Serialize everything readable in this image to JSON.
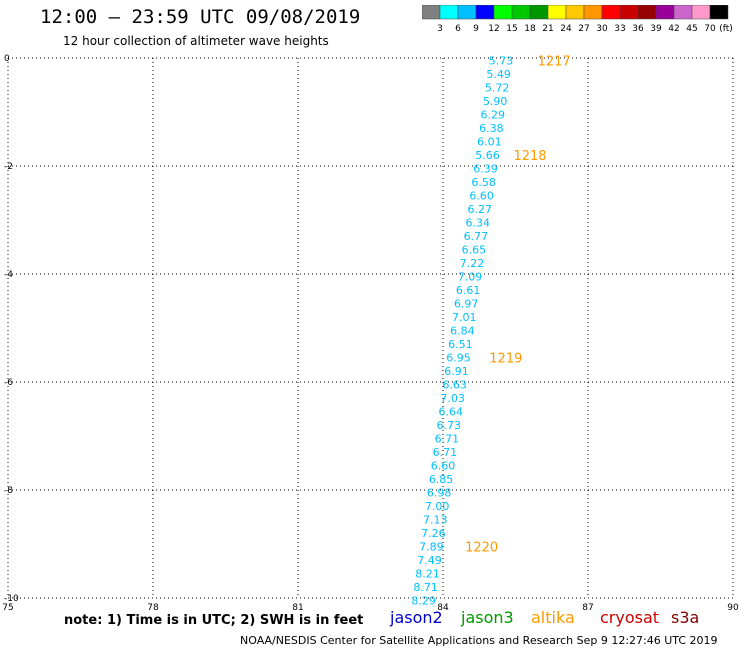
{
  "header": {
    "title": "12:00 — 23:59 UTC 09/08/2019",
    "subtitle": "12 hour collection of altimeter wave heights"
  },
  "colorbar": {
    "colors": [
      "#808080",
      "#00ffff",
      "#00bfff",
      "#0000ff",
      "#00ff00",
      "#00c800",
      "#009600",
      "#ffff00",
      "#ffc800",
      "#ff9600",
      "#ff0000",
      "#c80000",
      "#960000",
      "#990099",
      "#cc66cc",
      "#ff99cc",
      "#000000"
    ],
    "labels": [
      "3",
      "6",
      "9",
      "12",
      "15",
      "18",
      "21",
      "24",
      "27",
      "30",
      "33",
      "36",
      "39",
      "42",
      "45",
      "70"
    ],
    "unit": "(ft)"
  },
  "chart_data": {
    "type": "scatter",
    "xlim": [
      75,
      90
    ],
    "ylim": [
      -10,
      0
    ],
    "x_ticks": [
      "75",
      "78",
      "81",
      "84",
      "87",
      "90"
    ],
    "y_ticks": [
      "0",
      "-2",
      "-4",
      "-6",
      "-8",
      "-10"
    ],
    "grid": true,
    "point_color": "#00bfff",
    "time_label_color": "#ff9900",
    "points": [
      {
        "lon": 85.2,
        "lat": -0.05,
        "swh": "5.73"
      },
      {
        "lon": 85.15,
        "lat": -0.3,
        "swh": "5.49"
      },
      {
        "lon": 85.12,
        "lat": -0.55,
        "swh": "5.72"
      },
      {
        "lon": 85.08,
        "lat": -0.8,
        "swh": "5.90"
      },
      {
        "lon": 85.03,
        "lat": -1.05,
        "swh": "6.29"
      },
      {
        "lon": 85.0,
        "lat": -1.3,
        "swh": "6.38"
      },
      {
        "lon": 84.96,
        "lat": -1.55,
        "swh": "6.01"
      },
      {
        "lon": 84.92,
        "lat": -1.8,
        "swh": "5.66"
      },
      {
        "lon": 84.88,
        "lat": -2.05,
        "swh": "6.39"
      },
      {
        "lon": 84.84,
        "lat": -2.3,
        "swh": "6.58"
      },
      {
        "lon": 84.8,
        "lat": -2.55,
        "swh": "6.60"
      },
      {
        "lon": 84.76,
        "lat": -2.8,
        "swh": "6.27"
      },
      {
        "lon": 84.72,
        "lat": -3.05,
        "swh": "6.34"
      },
      {
        "lon": 84.68,
        "lat": -3.3,
        "swh": "6.77"
      },
      {
        "lon": 84.64,
        "lat": -3.55,
        "swh": "6.65"
      },
      {
        "lon": 84.6,
        "lat": -3.8,
        "swh": "7.22"
      },
      {
        "lon": 84.56,
        "lat": -4.05,
        "swh": "7.09"
      },
      {
        "lon": 84.52,
        "lat": -4.3,
        "swh": "6.61"
      },
      {
        "lon": 84.48,
        "lat": -4.55,
        "swh": "6.97"
      },
      {
        "lon": 84.44,
        "lat": -4.8,
        "swh": "7.01"
      },
      {
        "lon": 84.4,
        "lat": -5.05,
        "swh": "6.84"
      },
      {
        "lon": 84.36,
        "lat": -5.3,
        "swh": "6.51"
      },
      {
        "lon": 84.32,
        "lat": -5.55,
        "swh": "6.95"
      },
      {
        "lon": 84.28,
        "lat": -5.8,
        "swh": "6.91"
      },
      {
        "lon": 84.24,
        "lat": -6.05,
        "swh": "6.63"
      },
      {
        "lon": 84.2,
        "lat": -6.3,
        "swh": "7.03"
      },
      {
        "lon": 84.16,
        "lat": -6.55,
        "swh": "6.64"
      },
      {
        "lon": 84.12,
        "lat": -6.8,
        "swh": "6.73"
      },
      {
        "lon": 84.08,
        "lat": -7.05,
        "swh": "6.71"
      },
      {
        "lon": 84.04,
        "lat": -7.3,
        "swh": "6.71"
      },
      {
        "lon": 84.0,
        "lat": -7.55,
        "swh": "6.60"
      },
      {
        "lon": 83.96,
        "lat": -7.8,
        "swh": "6.85"
      },
      {
        "lon": 83.92,
        "lat": -8.05,
        "swh": "6.98"
      },
      {
        "lon": 83.88,
        "lat": -8.3,
        "swh": "7.00"
      },
      {
        "lon": 83.84,
        "lat": -8.55,
        "swh": "7.13"
      },
      {
        "lon": 83.8,
        "lat": -8.8,
        "swh": "7.26"
      },
      {
        "lon": 83.76,
        "lat": -9.05,
        "swh": "7.89"
      },
      {
        "lon": 83.72,
        "lat": -9.3,
        "swh": "7.49"
      },
      {
        "lon": 83.68,
        "lat": -9.55,
        "swh": "8.21"
      },
      {
        "lon": 83.64,
        "lat": -9.8,
        "swh": "8.71"
      },
      {
        "lon": 83.6,
        "lat": -10.05,
        "swh": "8.29"
      }
    ],
    "time_labels": [
      {
        "lon": 86.3,
        "lat": -0.05,
        "text": "1217"
      },
      {
        "lon": 85.8,
        "lat": -1.8,
        "text": "1218"
      },
      {
        "lon": 85.3,
        "lat": -5.55,
        "text": "1219"
      },
      {
        "lon": 84.8,
        "lat": -9.05,
        "text": "1220"
      }
    ]
  },
  "note": "note: 1) Time is in UTC; 2) SWH is in feet",
  "satellites": [
    {
      "name": "jason2",
      "color": "#0000cc"
    },
    {
      "name": "jason3",
      "color": "#009900"
    },
    {
      "name": "altika",
      "color": "#ff9900"
    },
    {
      "name": "cryosat",
      "color": "#cc0000"
    },
    {
      "name": "s3a",
      "color": "#800000"
    }
  ],
  "footer": "NOAA/NESDIS Center for Satellite Applications and Research    Sep  9 12:27:46 UTC 2019"
}
